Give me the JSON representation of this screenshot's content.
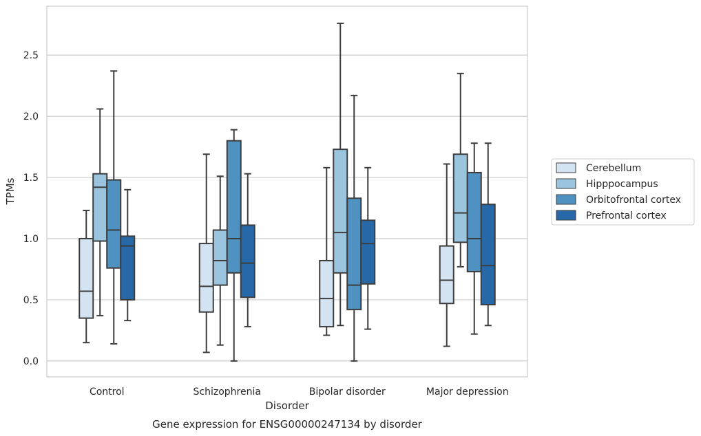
{
  "chart_data": {
    "type": "box",
    "title": "",
    "caption": "Gene expression for ENSG00000247134 by disorder",
    "xlabel": "Disorder",
    "ylabel": "TPMs",
    "ylim": [
      -0.13,
      2.9
    ],
    "yticks": [
      0.0,
      0.5,
      1.0,
      1.5,
      2.0,
      2.5
    ],
    "ytick_labels": [
      "0.0",
      "0.5",
      "1.0",
      "1.5",
      "2.0",
      "2.5"
    ],
    "grid": "horizontal",
    "legend_position": "right",
    "categories": [
      "Control",
      "Schizophrenia",
      "Bipolar disorder",
      "Major depression"
    ],
    "series": [
      {
        "name": "Cerebellum",
        "color": "#d3e3f2",
        "boxes": [
          {
            "min": 0.15,
            "q1": 0.35,
            "median": 0.57,
            "q3": 1.0,
            "max": 1.23
          },
          {
            "min": 0.07,
            "q1": 0.4,
            "median": 0.61,
            "q3": 0.96,
            "max": 1.69
          },
          {
            "min": 0.21,
            "q1": 0.28,
            "median": 0.51,
            "q3": 0.82,
            "max": 1.58
          },
          {
            "min": 0.12,
            "q1": 0.47,
            "median": 0.66,
            "q3": 0.94,
            "max": 1.61
          }
        ]
      },
      {
        "name": "Hipppocampus",
        "color": "#9bc4de",
        "boxes": [
          {
            "min": 0.37,
            "q1": 0.98,
            "median": 1.42,
            "q3": 1.53,
            "max": 2.06
          },
          {
            "min": 0.13,
            "q1": 0.62,
            "median": 0.82,
            "q3": 1.07,
            "max": 1.51
          },
          {
            "min": 0.29,
            "q1": 0.72,
            "median": 1.05,
            "q3": 1.73,
            "max": 2.76
          },
          {
            "min": 0.77,
            "q1": 0.97,
            "median": 1.21,
            "q3": 1.69,
            "max": 2.35
          }
        ]
      },
      {
        "name": "Orbitofrontal cortex",
        "color": "#4f92c1",
        "boxes": [
          {
            "min": 0.14,
            "q1": 0.76,
            "median": 1.07,
            "q3": 1.48,
            "max": 2.37
          },
          {
            "min": 0.0,
            "q1": 0.72,
            "median": 1.0,
            "q3": 1.8,
            "max": 1.89
          },
          {
            "min": 0.0,
            "q1": 0.42,
            "median": 0.62,
            "q3": 1.33,
            "max": 2.17
          },
          {
            "min": 0.22,
            "q1": 0.73,
            "median": 1.0,
            "q3": 1.54,
            "max": 1.78
          }
        ]
      },
      {
        "name": "Prefrontal cortex",
        "color": "#2768a8",
        "boxes": [
          {
            "min": 0.33,
            "q1": 0.5,
            "median": 0.94,
            "q3": 1.02,
            "max": 1.4
          },
          {
            "min": 0.28,
            "q1": 0.52,
            "median": 0.8,
            "q3": 1.11,
            "max": 1.53
          },
          {
            "min": 0.26,
            "q1": 0.63,
            "median": 0.96,
            "q3": 1.15,
            "max": 1.58
          },
          {
            "min": 0.29,
            "q1": 0.46,
            "median": 0.78,
            "q3": 1.28,
            "max": 1.78
          }
        ]
      }
    ]
  }
}
